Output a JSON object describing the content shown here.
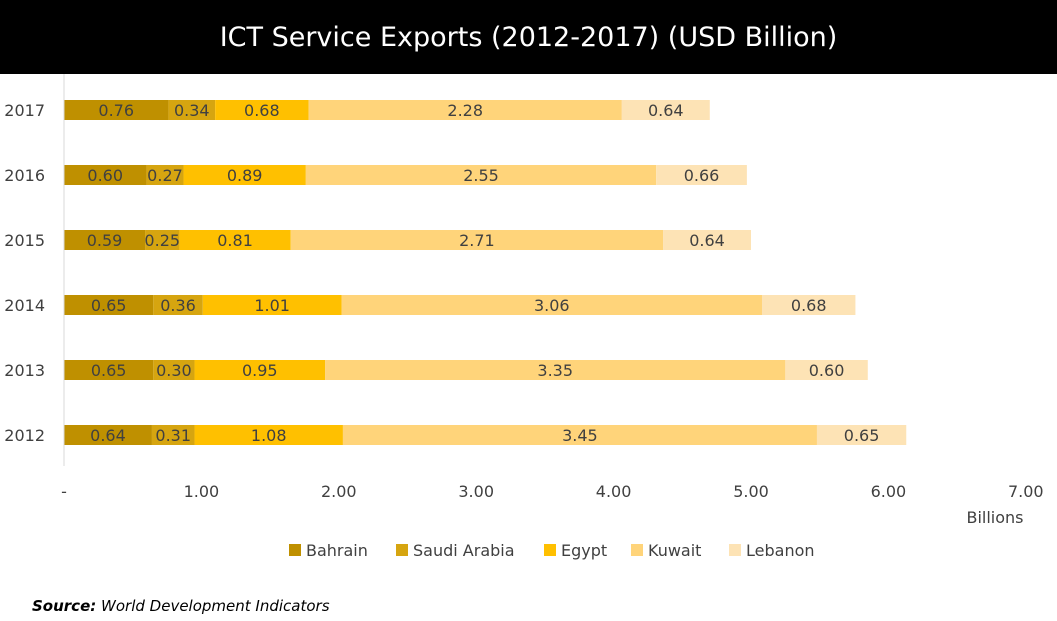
{
  "header": {
    "title": "ICT Service Exports (2012-2017) (USD Billion)"
  },
  "footer": {
    "source_label": "Source:",
    "source_text": "World Development Indicators"
  },
  "chart_data": {
    "type": "bar",
    "orientation": "horizontal",
    "stacked": true,
    "title": "ICT Service Exports (2012-2017) (USD Billion)",
    "categories": [
      "2012",
      "2013",
      "2014",
      "2015",
      "2016",
      "2017"
    ],
    "series": [
      {
        "name": "Bahrain",
        "color": "#bf9000",
        "values": [
          0.64,
          0.65,
          0.65,
          0.59,
          0.6,
          0.76
        ]
      },
      {
        "name": "Saudi Arabia",
        "color": "#d6a510",
        "values": [
          0.31,
          0.3,
          0.36,
          0.25,
          0.27,
          0.34
        ]
      },
      {
        "name": "Egypt",
        "color": "#ffc000",
        "values": [
          1.08,
          0.95,
          1.01,
          0.81,
          0.89,
          0.68
        ]
      },
      {
        "name": "Kuwait",
        "color": "#ffd47a",
        "values": [
          3.45,
          3.35,
          3.06,
          2.71,
          2.55,
          2.28
        ]
      },
      {
        "name": "Lebanon",
        "color": "#fde3b5",
        "values": [
          0.65,
          0.6,
          0.68,
          0.64,
          0.66,
          0.64
        ]
      }
    ],
    "xlim": [
      0,
      7
    ],
    "x_ticks": [
      "-",
      "1.00",
      "2.00",
      "3.00",
      "4.00",
      "5.00",
      "6.00",
      "7.00"
    ],
    "x_unit_label": "Billions",
    "xlabel": "",
    "ylabel": "",
    "grid": false,
    "legend_position": "bottom"
  }
}
